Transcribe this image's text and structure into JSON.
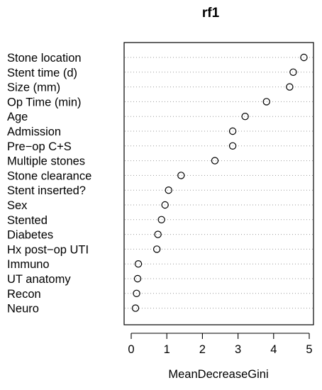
{
  "chart_data": {
    "type": "scatter",
    "title": "rf1",
    "xlabel": "MeanDecreaseGini",
    "ylabel": "",
    "xlim": [
      -0.2,
      4.95
    ],
    "xticks": [
      0,
      1,
      2,
      3,
      4,
      5
    ],
    "grid": "dotted horizontal",
    "categories": [
      "Stone location",
      "Stent time (d)",
      "Size (mm)",
      "Op Time (min)",
      "Age",
      "Admission",
      "Pre−op C+S",
      "Multiple stones",
      "Stone clearance",
      "Stent inserted?",
      "Sex",
      "Stented",
      "Diabetes",
      "Hx post−op UTI",
      "Immuno",
      "UT anatomy",
      "Recon",
      "Neuro"
    ],
    "values": [
      4.85,
      4.55,
      4.45,
      3.8,
      3.2,
      2.85,
      2.85,
      2.35,
      1.4,
      1.05,
      0.95,
      0.85,
      0.75,
      0.72,
      0.2,
      0.18,
      0.15,
      0.12
    ]
  }
}
